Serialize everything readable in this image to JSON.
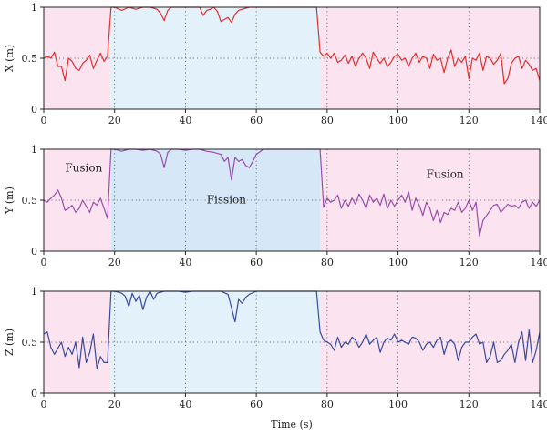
{
  "chart_data": [
    {
      "type": "line",
      "ylabel": "X (m)",
      "xlabel": "",
      "xlim": [
        0,
        140
      ],
      "ylim": [
        0,
        1
      ],
      "xticks": [
        0,
        20,
        40,
        60,
        80,
        100,
        120,
        140
      ],
      "yticks": [
        0,
        0.5,
        1
      ],
      "grid": true,
      "color": "#e03030",
      "regions": [
        {
          "x0": 0,
          "x1": 19,
          "color": "#fbe4ef",
          "label": ""
        },
        {
          "x0": 19,
          "x1": 78,
          "color": "#e3f1fb",
          "label": ""
        },
        {
          "x0": 78,
          "x1": 140,
          "color": "#fbe4ef",
          "label": ""
        }
      ],
      "series": [
        {
          "name": "",
          "x": [
            0,
            1,
            2,
            3,
            4,
            5,
            6,
            7,
            8,
            9,
            10,
            11,
            12,
            13,
            14,
            15,
            16,
            17,
            18,
            19,
            20,
            22,
            24,
            26,
            28,
            30,
            32,
            33,
            34,
            35,
            36,
            38,
            40,
            42,
            44,
            45,
            46,
            47,
            48,
            49,
            50,
            51,
            52,
            53,
            54,
            55,
            56,
            58,
            60,
            62,
            64,
            66,
            68,
            70,
            72,
            74,
            76,
            77,
            78,
            79,
            80,
            81,
            82,
            83,
            84,
            85,
            86,
            87,
            88,
            89,
            90,
            91,
            92,
            93,
            94,
            95,
            96,
            97,
            98,
            99,
            100,
            101,
            102,
            103,
            104,
            105,
            106,
            107,
            108,
            109,
            110,
            111,
            112,
            113,
            114,
            115,
            116,
            117,
            118,
            119,
            120,
            121,
            122,
            123,
            124,
            125,
            126,
            127,
            128,
            129,
            130,
            131,
            132,
            133,
            134,
            135,
            136,
            137,
            138,
            139,
            140
          ],
          "y": [
            0.5,
            0.52,
            0.5,
            0.56,
            0.42,
            0.42,
            0.28,
            0.5,
            0.47,
            0.4,
            0.38,
            0.45,
            0.48,
            0.53,
            0.4,
            0.48,
            0.55,
            0.47,
            0.52,
            1.0,
            1.0,
            0.97,
            1.0,
            0.98,
            1.0,
            1.0,
            0.98,
            0.94,
            0.87,
            0.97,
            1.0,
            1.0,
            1.0,
            1.0,
            1.0,
            0.92,
            0.97,
            0.98,
            1.0,
            0.96,
            0.86,
            0.88,
            0.9,
            0.85,
            0.93,
            0.97,
            0.98,
            1.0,
            1.0,
            1.0,
            1.0,
            1.0,
            1.0,
            1.0,
            1.0,
            1.0,
            1.0,
            1.0,
            0.56,
            0.52,
            0.55,
            0.5,
            0.55,
            0.46,
            0.48,
            0.53,
            0.45,
            0.52,
            0.42,
            0.5,
            0.55,
            0.5,
            0.4,
            0.56,
            0.5,
            0.45,
            0.5,
            0.42,
            0.46,
            0.52,
            0.54,
            0.48,
            0.5,
            0.42,
            0.5,
            0.55,
            0.46,
            0.52,
            0.5,
            0.4,
            0.54,
            0.48,
            0.5,
            0.36,
            0.5,
            0.58,
            0.42,
            0.5,
            0.46,
            0.52,
            0.3,
            0.5,
            0.48,
            0.55,
            0.38,
            0.52,
            0.5,
            0.44,
            0.48,
            0.55,
            0.25,
            0.3,
            0.45,
            0.5,
            0.52,
            0.4,
            0.48,
            0.44,
            0.38,
            0.4,
            0.28
          ]
        }
      ]
    },
    {
      "type": "line",
      "ylabel": "Y (m)",
      "xlabel": "",
      "xlim": [
        0,
        140
      ],
      "ylim": [
        0,
        1
      ],
      "xticks": [
        0,
        20,
        40,
        60,
        80,
        100,
        120,
        140
      ],
      "yticks": [
        0,
        0.5,
        1
      ],
      "grid": true,
      "color": "#9a4cae",
      "regions": [
        {
          "x0": 0,
          "x1": 19,
          "color": "#fbe4ef",
          "label": "Fusion"
        },
        {
          "x0": 19,
          "x1": 78,
          "color": "#d6e8f8",
          "label": "Fission"
        },
        {
          "x0": 78,
          "x1": 140,
          "color": "#fbe4ef",
          "label": "Fusion"
        }
      ],
      "series": [
        {
          "name": "",
          "x": [
            0,
            1,
            2,
            3,
            4,
            5,
            6,
            7,
            8,
            9,
            10,
            11,
            12,
            13,
            14,
            15,
            16,
            17,
            18,
            19,
            20,
            22,
            24,
            26,
            28,
            30,
            32,
            33,
            34,
            35,
            36,
            38,
            40,
            42,
            44,
            46,
            48,
            50,
            51,
            52,
            53,
            54,
            55,
            56,
            57,
            58,
            59,
            60,
            62,
            64,
            66,
            68,
            70,
            72,
            74,
            76,
            77,
            78,
            79,
            80,
            81,
            82,
            83,
            84,
            85,
            86,
            87,
            88,
            89,
            90,
            91,
            92,
            93,
            94,
            95,
            96,
            97,
            98,
            99,
            100,
            101,
            102,
            103,
            104,
            105,
            106,
            107,
            108,
            109,
            110,
            111,
            112,
            113,
            114,
            115,
            116,
            117,
            118,
            119,
            120,
            121,
            122,
            123,
            124,
            125,
            126,
            127,
            128,
            129,
            130,
            131,
            132,
            133,
            134,
            135,
            136,
            137,
            138,
            139,
            140
          ],
          "y": [
            0.5,
            0.48,
            0.52,
            0.55,
            0.6,
            0.52,
            0.4,
            0.42,
            0.45,
            0.38,
            0.42,
            0.5,
            0.44,
            0.38,
            0.48,
            0.45,
            0.52,
            0.42,
            0.32,
            1.0,
            1.0,
            0.98,
            1.0,
            1.0,
            0.99,
            1.0,
            0.98,
            0.95,
            0.82,
            0.97,
            1.0,
            1.0,
            0.99,
            1.0,
            1.0,
            0.98,
            0.97,
            0.95,
            0.88,
            0.92,
            0.7,
            0.92,
            0.88,
            0.9,
            0.84,
            0.82,
            0.88,
            0.95,
            1.0,
            1.0,
            1.0,
            1.0,
            1.0,
            1.0,
            1.0,
            1.0,
            1.0,
            1.0,
            0.43,
            0.52,
            0.48,
            0.5,
            0.55,
            0.42,
            0.5,
            0.44,
            0.52,
            0.46,
            0.56,
            0.5,
            0.42,
            0.55,
            0.48,
            0.52,
            0.45,
            0.56,
            0.42,
            0.5,
            0.44,
            0.5,
            0.55,
            0.48,
            0.58,
            0.4,
            0.52,
            0.45,
            0.35,
            0.48,
            0.42,
            0.3,
            0.4,
            0.28,
            0.38,
            0.36,
            0.42,
            0.4,
            0.48,
            0.38,
            0.42,
            0.5,
            0.4,
            0.48,
            0.15,
            0.3,
            0.35,
            0.4,
            0.45,
            0.46,
            0.38,
            0.42,
            0.46,
            0.44,
            0.45,
            0.42,
            0.48,
            0.5,
            0.42,
            0.48,
            0.44,
            0.5
          ]
        }
      ]
    },
    {
      "type": "line",
      "ylabel": "Z (m)",
      "xlabel": "Time (s)",
      "xlim": [
        0,
        140
      ],
      "ylim": [
        0,
        1
      ],
      "xticks": [
        0,
        20,
        40,
        60,
        80,
        100,
        120,
        140
      ],
      "yticks": [
        0,
        0.5,
        1
      ],
      "grid": true,
      "color": "#3a4aa0",
      "regions": [
        {
          "x0": 0,
          "x1": 19,
          "color": "#fbe4ef",
          "label": ""
        },
        {
          "x0": 19,
          "x1": 78,
          "color": "#e3f1fb",
          "label": ""
        },
        {
          "x0": 78,
          "x1": 140,
          "color": "#fbe4ef",
          "label": ""
        }
      ],
      "series": [
        {
          "name": "",
          "x": [
            0,
            1,
            2,
            3,
            4,
            5,
            6,
            7,
            8,
            9,
            10,
            11,
            12,
            13,
            14,
            15,
            16,
            17,
            18,
            19,
            20,
            22,
            23,
            24,
            25,
            26,
            27,
            28,
            29,
            30,
            31,
            32,
            34,
            36,
            38,
            40,
            42,
            44,
            46,
            48,
            50,
            52,
            53,
            54,
            55,
            56,
            57,
            58,
            60,
            62,
            64,
            66,
            68,
            70,
            72,
            74,
            76,
            77,
            78,
            79,
            80,
            81,
            82,
            83,
            84,
            85,
            86,
            87,
            88,
            89,
            90,
            91,
            92,
            93,
            94,
            95,
            96,
            97,
            98,
            99,
            100,
            101,
            102,
            103,
            104,
            105,
            106,
            107,
            108,
            109,
            110,
            111,
            112,
            113,
            114,
            115,
            116,
            117,
            118,
            119,
            120,
            121,
            122,
            123,
            124,
            125,
            126,
            127,
            128,
            129,
            130,
            131,
            132,
            133,
            134,
            135,
            136,
            137,
            138,
            139,
            140
          ],
          "y": [
            0.58,
            0.6,
            0.45,
            0.38,
            0.44,
            0.5,
            0.36,
            0.45,
            0.38,
            0.5,
            0.25,
            0.55,
            0.3,
            0.4,
            0.58,
            0.24,
            0.36,
            0.3,
            0.3,
            1.0,
            1.0,
            0.98,
            0.95,
            0.85,
            0.98,
            0.9,
            0.96,
            0.82,
            0.94,
            1.0,
            0.92,
            0.98,
            1.0,
            1.0,
            1.0,
            0.99,
            1.0,
            1.0,
            1.0,
            1.0,
            1.0,
            0.97,
            0.84,
            0.7,
            0.92,
            0.88,
            0.94,
            0.97,
            1.0,
            1.0,
            1.0,
            1.0,
            1.0,
            1.0,
            1.0,
            1.0,
            1.0,
            1.0,
            0.6,
            0.52,
            0.5,
            0.48,
            0.42,
            0.55,
            0.45,
            0.5,
            0.48,
            0.55,
            0.52,
            0.45,
            0.5,
            0.58,
            0.48,
            0.52,
            0.55,
            0.4,
            0.5,
            0.54,
            0.52,
            0.58,
            0.5,
            0.52,
            0.5,
            0.48,
            0.55,
            0.54,
            0.5,
            0.42,
            0.48,
            0.5,
            0.45,
            0.52,
            0.55,
            0.38,
            0.5,
            0.52,
            0.48,
            0.32,
            0.45,
            0.5,
            0.5,
            0.55,
            0.58,
            0.48,
            0.5,
            0.3,
            0.36,
            0.5,
            0.3,
            0.32,
            0.38,
            0.42,
            0.48,
            0.3,
            0.5,
            0.6,
            0.32,
            0.62,
            0.3,
            0.42,
            0.6
          ]
        }
      ]
    }
  ]
}
